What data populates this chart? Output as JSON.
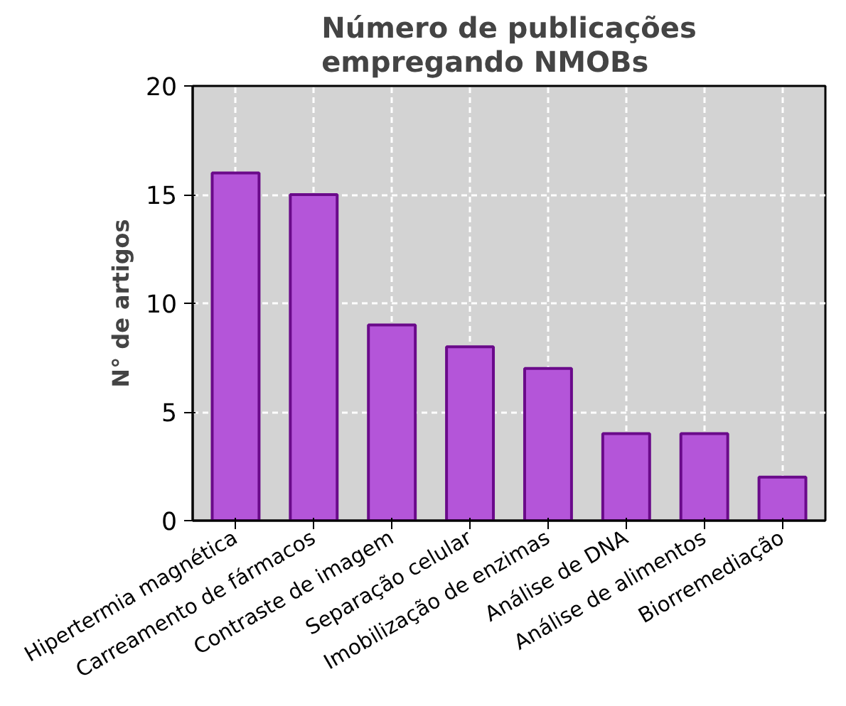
{
  "chart_data": {
    "type": "bar",
    "title": "Número de publicações\nempregando NMOBs",
    "ylabel": "N° de artigos",
    "categories": [
      "Hipertermia magnética",
      "Carreamento de fármacos",
      "Contraste de imagem",
      "Separação celular",
      "Imobilização de enzimas",
      "Análise de DNA",
      "Análise de alimentos",
      "Biorremediação"
    ],
    "values": [
      16,
      15,
      9,
      8,
      7,
      4,
      4,
      2
    ],
    "color": "#b455d9",
    "ylim": [
      0,
      20
    ],
    "yticks": [
      0,
      5,
      10,
      15,
      20
    ],
    "grid": true
  }
}
